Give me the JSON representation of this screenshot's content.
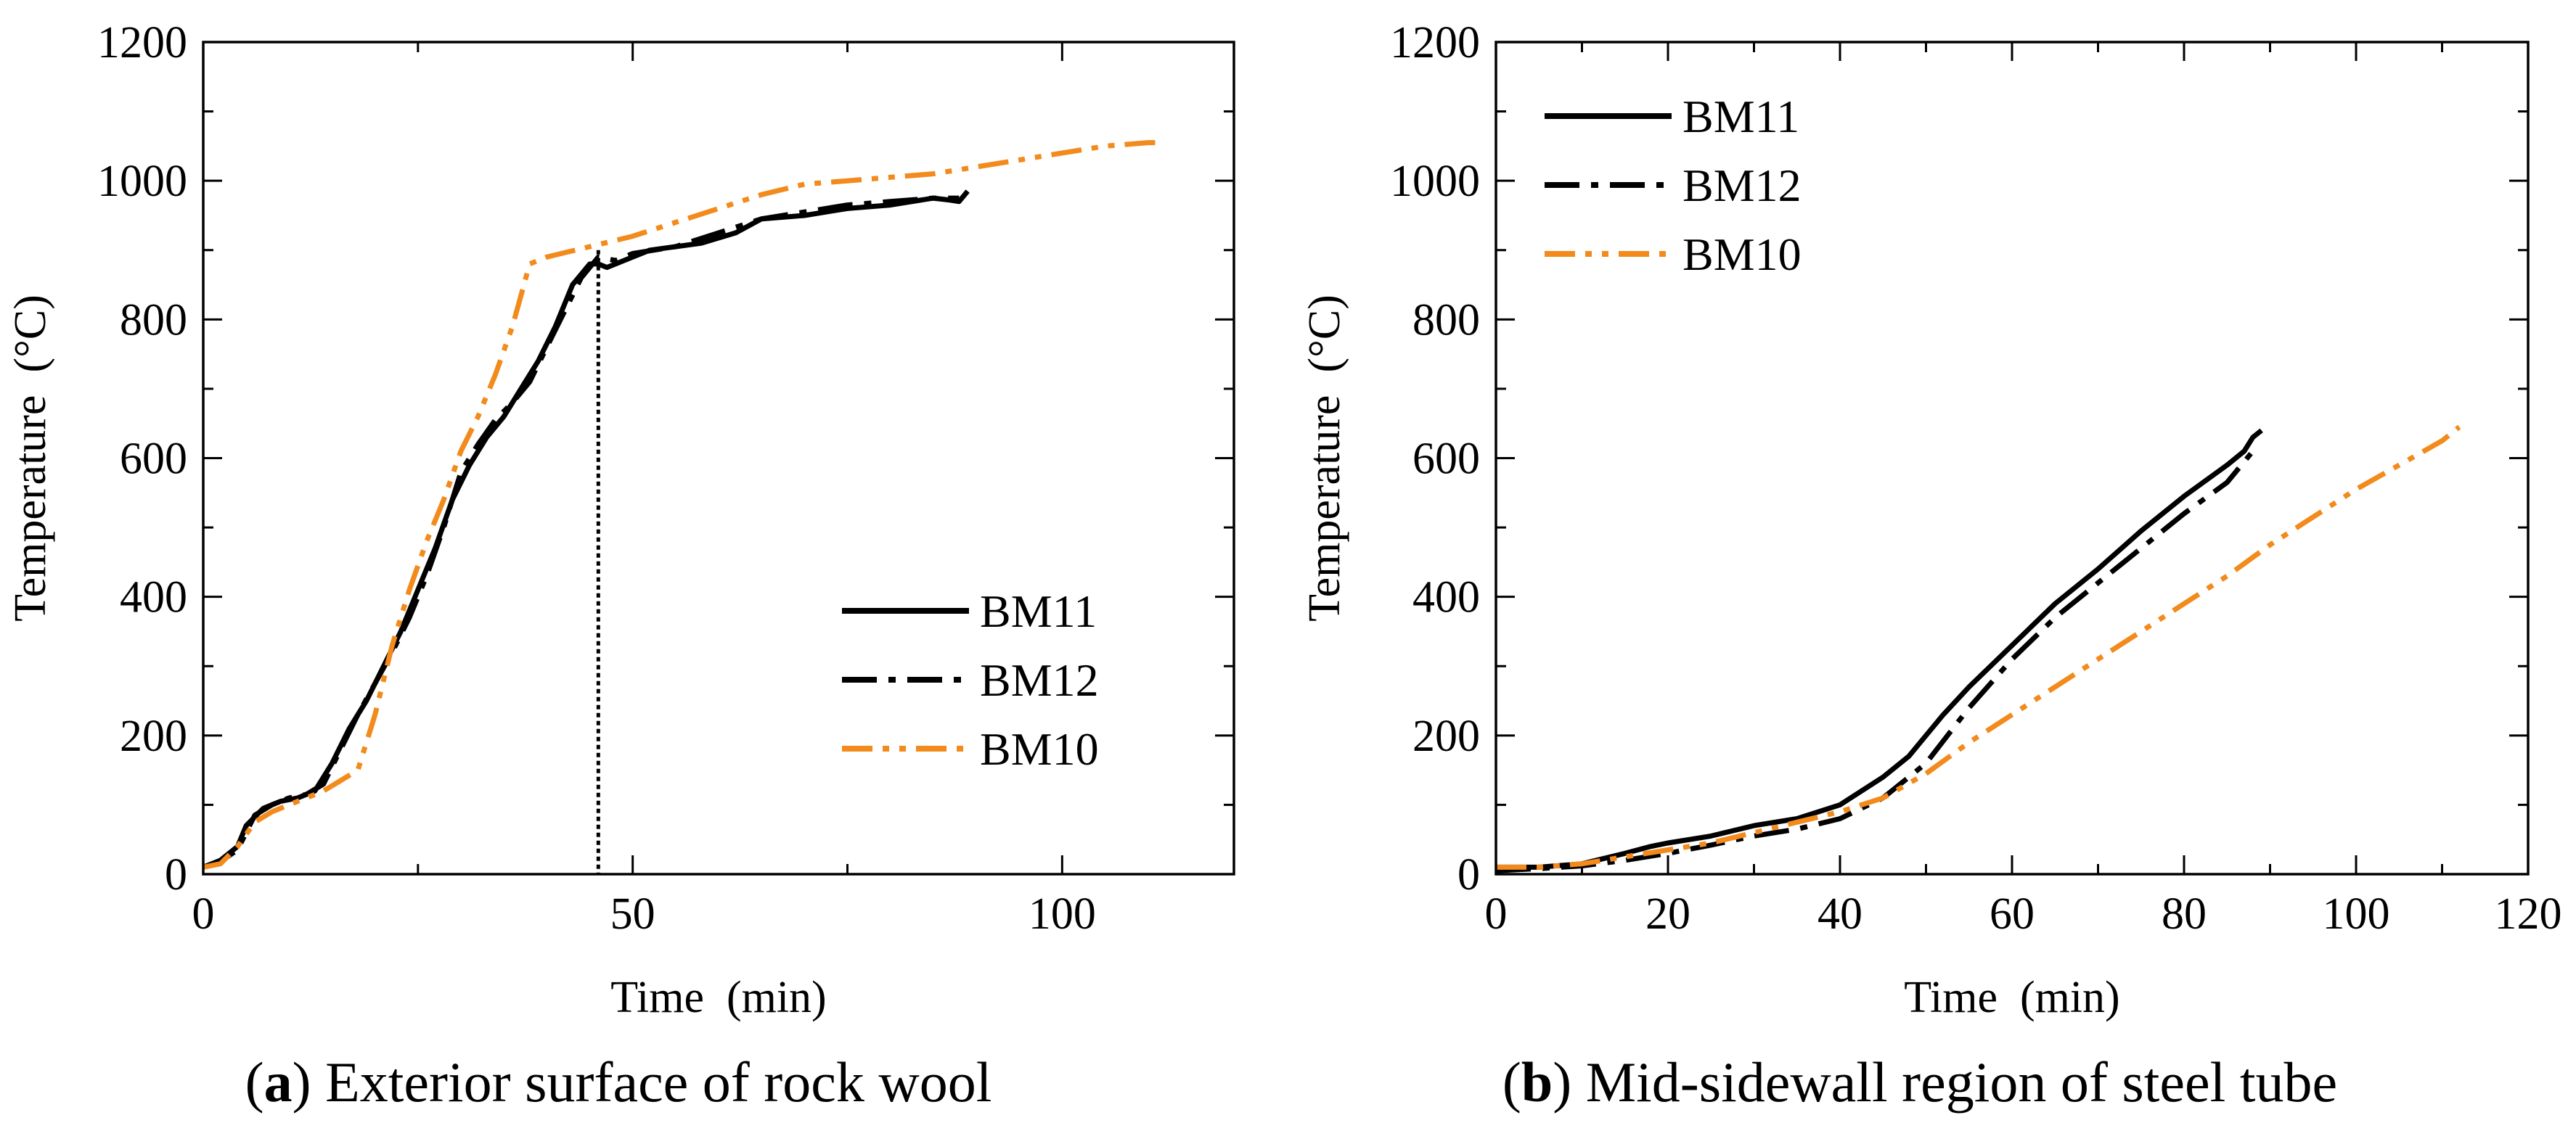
{
  "colors": {
    "black": "#000000",
    "orange": "#f28a1c",
    "background": "#ffffff"
  },
  "chart_data": [
    {
      "type": "line",
      "caption_letter": "a",
      "caption_text": ") Exterior surface of rock wool",
      "caption_open": "(",
      "xlabel": "Time  (min)",
      "ylabel": "Temperature  (°C)",
      "xlim": [
        0,
        120
      ],
      "ylim": [
        0,
        1200
      ],
      "xticks": [
        0,
        50,
        100
      ],
      "xtick_labels": [
        "0",
        "50",
        "100"
      ],
      "yticks": [
        0,
        200,
        400,
        600,
        800,
        1000,
        1200
      ],
      "ytick_labels": [
        "0",
        "200",
        "400",
        "600",
        "800",
        "1000",
        "1200"
      ],
      "legend_position": "bottom-right",
      "vline_x": 46,
      "series": [
        {
          "name": "BM11",
          "style": "solid",
          "color": "black",
          "x": [
            0,
            2,
            4,
            5,
            7,
            9,
            11,
            13,
            15,
            17,
            19,
            21,
            23,
            25,
            27,
            29,
            31,
            33,
            35,
            37,
            39,
            41,
            43,
            45,
            46,
            47,
            48,
            50,
            52,
            55,
            58,
            62,
            65,
            70,
            75,
            80,
            85,
            87,
            88,
            89
          ],
          "y": [
            10,
            20,
            40,
            70,
            95,
            105,
            110,
            120,
            160,
            210,
            250,
            300,
            350,
            410,
            470,
            540,
            590,
            630,
            660,
            700,
            740,
            790,
            850,
            880,
            880,
            875,
            880,
            890,
            900,
            905,
            910,
            925,
            945,
            950,
            960,
            965,
            975,
            972,
            970,
            985
          ]
        },
        {
          "name": "BM12",
          "style": "dashdot",
          "color": "black",
          "x": [
            0,
            2,
            4,
            6,
            8,
            10,
            12,
            14,
            16,
            18,
            20,
            22,
            24,
            26,
            28,
            30,
            32,
            34,
            36,
            38,
            40,
            42,
            44,
            46,
            48,
            50,
            55,
            60,
            65,
            70,
            75,
            80,
            85,
            88
          ],
          "y": [
            10,
            18,
            35,
            85,
            100,
            110,
            115,
            130,
            180,
            230,
            275,
            320,
            370,
            430,
            500,
            580,
            620,
            655,
            680,
            710,
            760,
            810,
            860,
            890,
            885,
            895,
            905,
            925,
            945,
            955,
            965,
            970,
            975,
            975
          ]
        },
        {
          "name": "BM10",
          "style": "dashdotdot",
          "color": "orange",
          "x": [
            0,
            2,
            4,
            6,
            8,
            10,
            12,
            14,
            16,
            18,
            20,
            22,
            24,
            26,
            28,
            30,
            32,
            34,
            36,
            38,
            40,
            45,
            50,
            55,
            60,
            65,
            70,
            75,
            80,
            85,
            90,
            95,
            100,
            105,
            110,
            112
          ],
          "y": [
            10,
            15,
            40,
            75,
            90,
            100,
            110,
            120,
            135,
            150,
            230,
            330,
            410,
            480,
            540,
            610,
            660,
            720,
            790,
            880,
            890,
            905,
            920,
            940,
            960,
            980,
            995,
            1000,
            1005,
            1010,
            1020,
            1030,
            1040,
            1050,
            1055,
            1055
          ]
        }
      ]
    },
    {
      "type": "line",
      "caption_letter": "b",
      "caption_text": ") Mid-sidewall region of steel tube",
      "caption_open": "(",
      "xlabel": "Time  (min)",
      "ylabel": "Temperature  (°C)",
      "xlim": [
        0,
        120
      ],
      "ylim": [
        0,
        1200
      ],
      "xticks": [
        0,
        20,
        40,
        60,
        80,
        100,
        120
      ],
      "xtick_labels": [
        "0",
        "20",
        "40",
        "60",
        "80",
        "100",
        "120"
      ],
      "yticks": [
        0,
        200,
        400,
        600,
        800,
        1000,
        1200
      ],
      "ytick_labels": [
        "0",
        "200",
        "400",
        "600",
        "800",
        "1000",
        "1200"
      ],
      "legend_position": "top-left",
      "series": [
        {
          "name": "BM11",
          "style": "solid",
          "color": "black",
          "x": [
            0,
            5,
            10,
            15,
            18,
            20,
            25,
            30,
            35,
            40,
            45,
            48,
            50,
            52,
            55,
            60,
            65,
            70,
            75,
            80,
            85,
            87,
            88,
            89
          ],
          "y": [
            10,
            10,
            15,
            30,
            40,
            45,
            55,
            70,
            80,
            100,
            140,
            170,
            200,
            230,
            270,
            330,
            390,
            440,
            495,
            545,
            590,
            610,
            630,
            640
          ]
        },
        {
          "name": "BM12",
          "style": "dashdot",
          "color": "black",
          "x": [
            0,
            5,
            10,
            15,
            20,
            25,
            30,
            35,
            40,
            45,
            50,
            55,
            60,
            65,
            70,
            75,
            80,
            85,
            88
          ],
          "y": [
            5,
            8,
            12,
            20,
            30,
            42,
            55,
            65,
            80,
            110,
            160,
            240,
            310,
            370,
            420,
            470,
            520,
            565,
            610
          ]
        },
        {
          "name": "BM10",
          "style": "dashdotdot",
          "color": "orange",
          "x": [
            0,
            5,
            10,
            15,
            20,
            25,
            30,
            35,
            40,
            45,
            50,
            55,
            60,
            65,
            70,
            75,
            80,
            85,
            90,
            95,
            100,
            105,
            110,
            112
          ],
          "y": [
            10,
            10,
            15,
            25,
            35,
            45,
            60,
            75,
            90,
            110,
            145,
            190,
            230,
            270,
            310,
            350,
            390,
            430,
            475,
            515,
            555,
            590,
            625,
            645
          ]
        }
      ]
    }
  ]
}
